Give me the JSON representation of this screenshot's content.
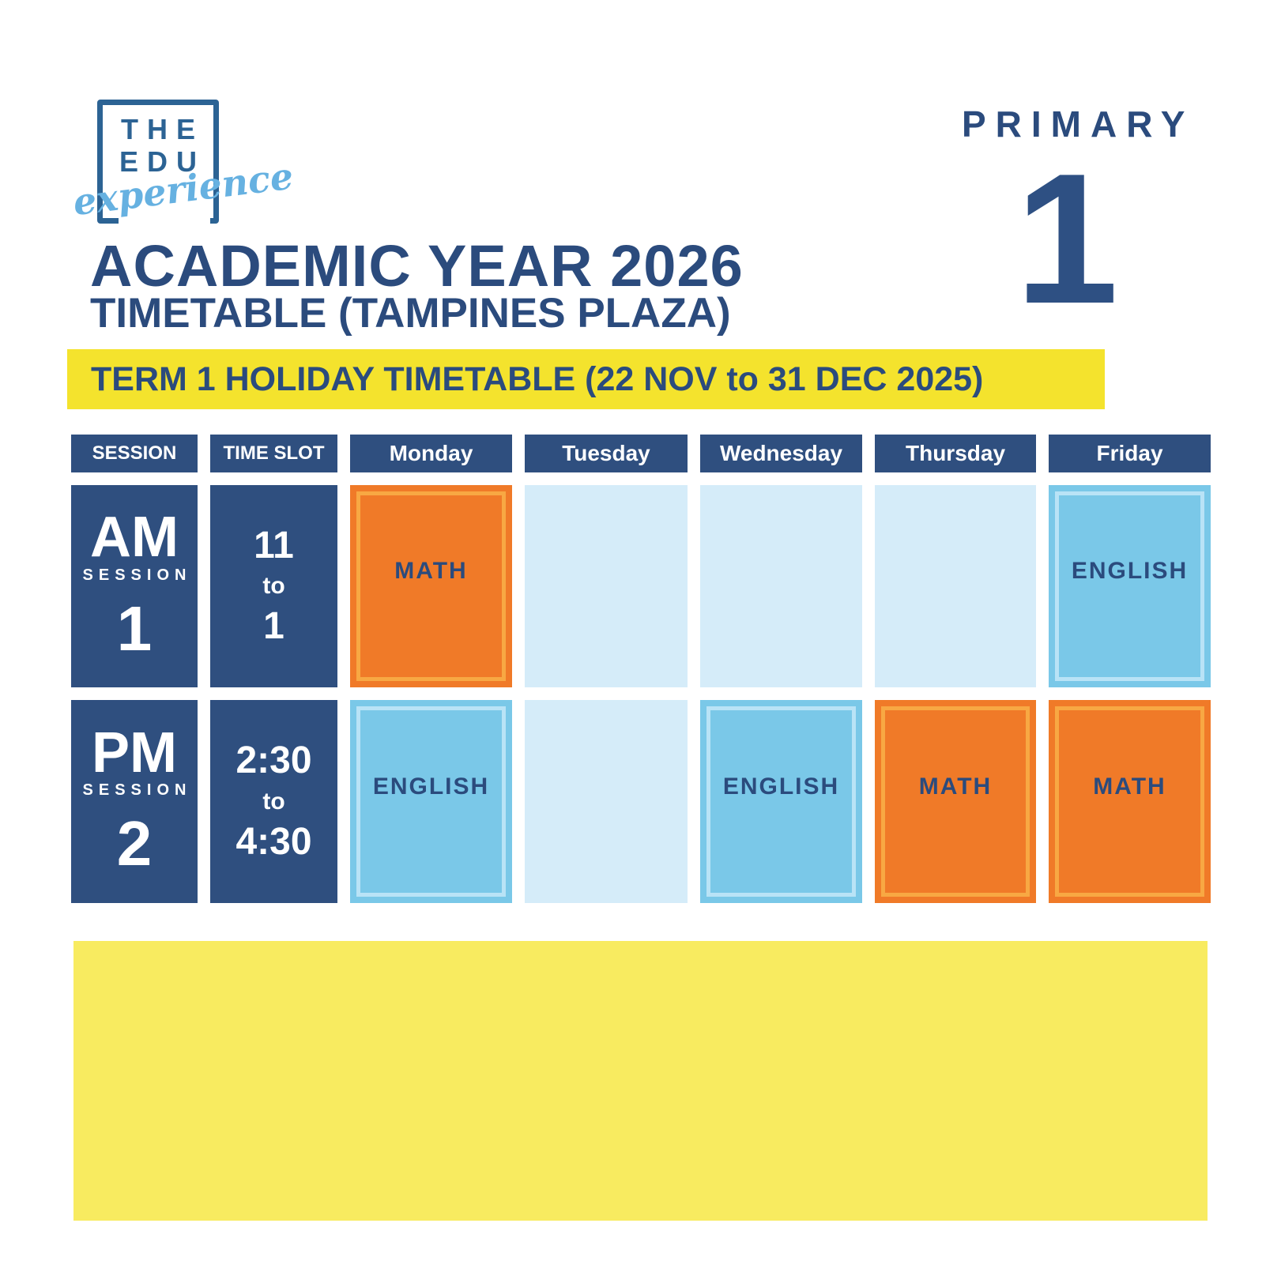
{
  "brand": {
    "name_line1": "THE",
    "name_line2": "EDU",
    "name_script": "experience"
  },
  "level": {
    "label": "PRIMARY",
    "number": "1"
  },
  "header": {
    "title": "ACADEMIC YEAR 2026",
    "subtitle": "TIMETABLE (TAMPINES PLAZA)",
    "banner": "TERM 1 HOLIDAY TIMETABLE (22 NOV to 31 DEC 2025)"
  },
  "timetable": {
    "column_headers": [
      "SESSION",
      "TIME SLOT",
      "Monday",
      "Tuesday",
      "Wednesday",
      "Thursday",
      "Friday"
    ],
    "rows": [
      {
        "session": {
          "period": "AM",
          "caption": "SESSION",
          "number": "1"
        },
        "time_slot": {
          "from": "11",
          "joiner": "to",
          "to": "1"
        },
        "days": [
          {
            "day": "Monday",
            "subject": "MATH",
            "type": "math"
          },
          {
            "day": "Tuesday",
            "subject": "",
            "type": "empty"
          },
          {
            "day": "Wednesday",
            "subject": "",
            "type": "empty"
          },
          {
            "day": "Thursday",
            "subject": "",
            "type": "empty"
          },
          {
            "day": "Friday",
            "subject": "ENGLISH",
            "type": "english"
          }
        ]
      },
      {
        "session": {
          "period": "PM",
          "caption": "SESSION",
          "number": "2"
        },
        "time_slot": {
          "from": "2:30",
          "joiner": "to",
          "to": "4:30"
        },
        "days": [
          {
            "day": "Monday",
            "subject": "ENGLISH",
            "type": "english"
          },
          {
            "day": "Tuesday",
            "subject": "",
            "type": "empty"
          },
          {
            "day": "Wednesday",
            "subject": "ENGLISH",
            "type": "english"
          },
          {
            "day": "Thursday",
            "subject": "MATH",
            "type": "math"
          },
          {
            "day": "Friday",
            "subject": "MATH",
            "type": "math"
          }
        ]
      }
    ]
  },
  "colors": {
    "navy": "#2F4F7F",
    "text_navy": "#2B4B7D",
    "logo_blue": "#2C6394",
    "script_blue": "#66B1E1",
    "banner_yellow": "#F4E32D",
    "block_yellow": "#F8EB60",
    "math_orange": "#F07A28",
    "math_frame": "#F8A843",
    "english_blue": "#7AC8E8",
    "english_frame": "#B9E3F6",
    "empty_cell_blue": "#D5ECF9"
  }
}
